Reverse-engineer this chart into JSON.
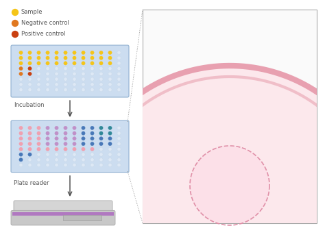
{
  "bg_color": "#ffffff",
  "legend_items": [
    {
      "label": "Sample",
      "color": "#f5c518"
    },
    {
      "label": "Negative control",
      "color": "#e07820"
    },
    {
      "label": "Positive control",
      "color": "#c94010"
    }
  ],
  "incubation_label": "Incubation",
  "platereader_label": "Plate reader",
  "plate_bg": "#ccddf0",
  "plate_border": "#90b0d0",
  "well_empty": "#dde8f5",
  "well_yellow": "#f5c518",
  "well_orange": "#e07820",
  "well_dark_orange": "#c94010",
  "well_pink": "#f0a0b0",
  "well_mauve": "#d080a0",
  "well_purple": "#c090c8",
  "well_blue": "#4878b8",
  "well_teal": "#308898",
  "big_arc_fill": "#fce8ec",
  "big_arc_stroke_outer": "#e8a0b0",
  "big_arc_stroke_inner": "#f0bec8",
  "small_circle_fill": "#fce0e8",
  "small_circle_stroke": "#e090a8",
  "arrow_color": "#444444",
  "text_color": "#555555",
  "connector_color": "#999999",
  "font_size": 6.0,
  "callout_bg": "#fafafa",
  "callout_border": "#aaaaaa"
}
